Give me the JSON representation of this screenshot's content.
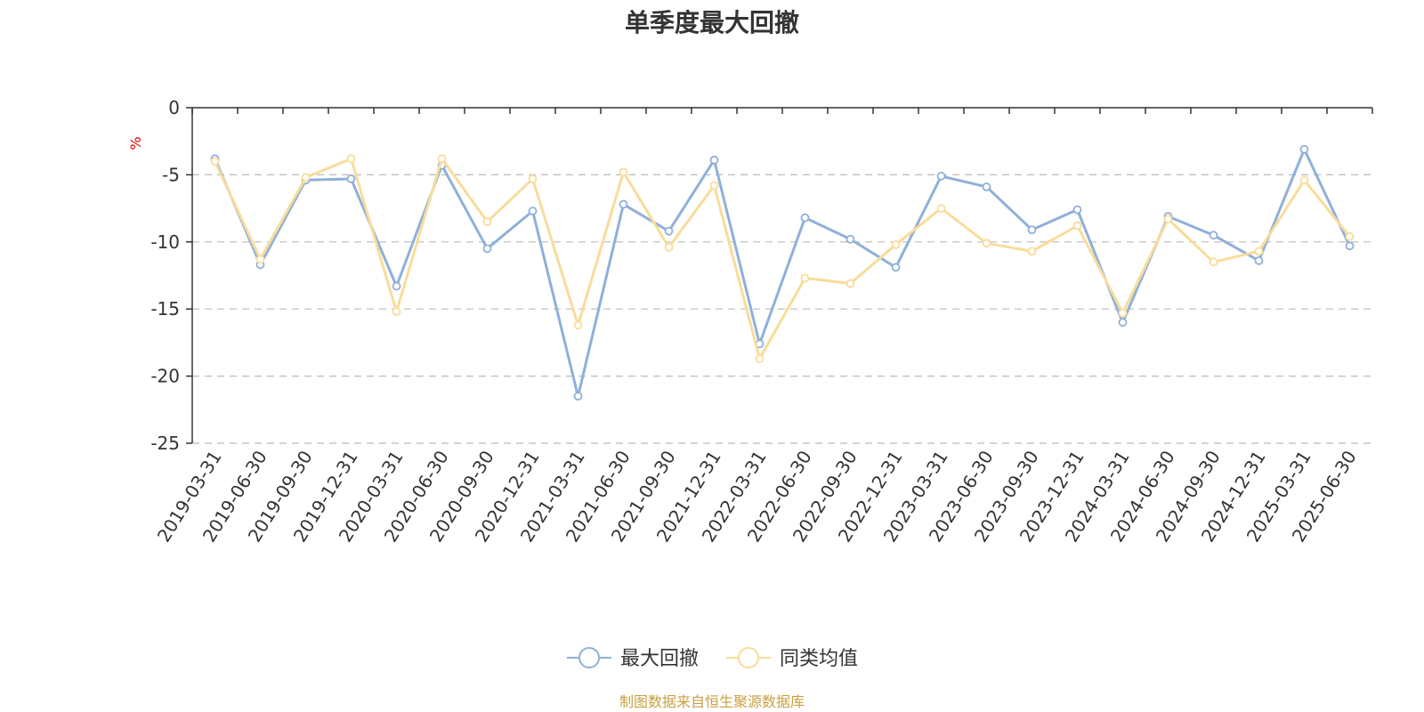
{
  "colors": {
    "series_1": "#8fb0d9",
    "series_2": "#f9dc9a",
    "axis": "#333333",
    "grid": "#bbbbbb",
    "unit_label": "#e00000",
    "source_note": "#c8a040"
  },
  "chart_data": {
    "type": "line",
    "title": "单季度最大回撤",
    "ylabel": "%",
    "xlabel": "",
    "ylim": [
      -25,
      0
    ],
    "yticks": [
      0,
      -5,
      -10,
      -15,
      -20,
      -25
    ],
    "grid": {
      "horizontal": true,
      "style": "dashed"
    },
    "legend_position": "bottom-center",
    "categories": [
      "2019-03-31",
      "2019-06-30",
      "2019-09-30",
      "2019-12-31",
      "2020-03-31",
      "2020-06-30",
      "2020-09-30",
      "2020-12-31",
      "2021-03-31",
      "2021-06-30",
      "2021-09-30",
      "2021-12-31",
      "2022-03-31",
      "2022-06-30",
      "2022-09-30",
      "2022-12-31",
      "2023-03-31",
      "2023-06-30",
      "2023-09-30",
      "2023-12-31",
      "2024-03-31",
      "2024-06-30",
      "2024-09-30",
      "2024-12-31",
      "2025-03-31",
      "2025-06-30"
    ],
    "series": [
      {
        "name": "最大回撤",
        "values": [
          -3.8,
          -11.7,
          -5.4,
          -5.3,
          -13.3,
          -4.3,
          -10.5,
          -7.7,
          -21.5,
          -7.2,
          -9.2,
          -3.9,
          -17.6,
          -8.2,
          -9.8,
          -11.9,
          -5.1,
          -5.9,
          -9.1,
          -7.6,
          -16.0,
          -8.1,
          -9.5,
          -11.4,
          -3.1,
          -10.3
        ]
      },
      {
        "name": "同类均值",
        "values": [
          -4.0,
          -11.3,
          -5.2,
          -3.8,
          -15.2,
          -3.8,
          -8.5,
          -5.3,
          -16.2,
          -4.8,
          -10.4,
          -5.8,
          -18.7,
          -12.7,
          -13.1,
          -10.2,
          -7.5,
          -10.1,
          -10.7,
          -8.8,
          -15.3,
          -8.3,
          -11.5,
          -10.7,
          -5.4,
          -9.6
        ]
      }
    ]
  },
  "source_note": "制图数据来自恒生聚源数据库"
}
